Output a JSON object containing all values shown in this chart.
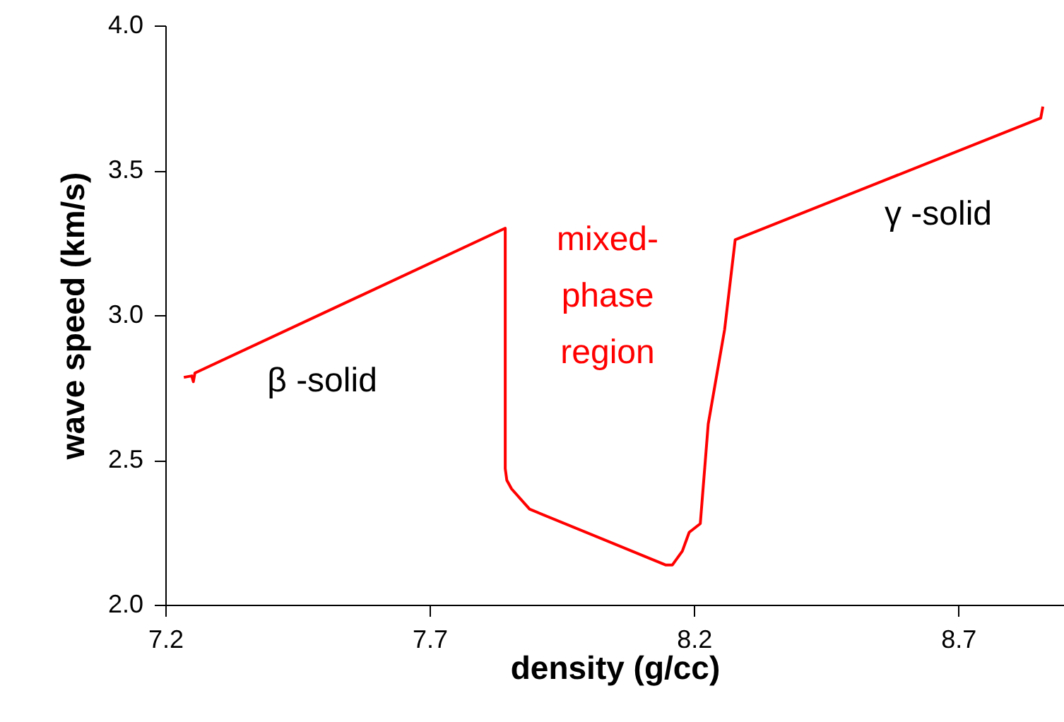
{
  "chart_data": {
    "type": "line",
    "xlabel": "density (g/cc)",
    "ylabel": "wave speed (km/s)",
    "series": [
      {
        "color": "#ff0000",
        "x": [
          7.235,
          7.25,
          7.253,
          7.256,
          7.843,
          7.843,
          7.846,
          7.855,
          7.889,
          8.147,
          8.159,
          8.178,
          8.191,
          8.212,
          8.227,
          8.258,
          8.278,
          8.856,
          8.86
        ],
        "values": [
          2.785,
          2.79,
          2.77,
          2.8,
          3.3,
          2.47,
          2.43,
          2.4,
          2.33,
          2.137,
          2.137,
          2.185,
          2.25,
          2.28,
          2.624,
          2.95,
          3.26,
          3.68,
          3.72
        ]
      }
    ],
    "xlim": [
      7.2,
      8.9
    ],
    "xticks": [
      7.2,
      7.7,
      8.2,
      8.7
    ],
    "ylim": [
      2.0,
      4.0
    ],
    "yticks": [
      {
        "value": 2.0,
        "label": "2.0"
      },
      {
        "value": 2.5,
        "label": "2.5"
      },
      {
        "value": 3.0,
        "label": "3.0"
      },
      {
        "value": 3.5,
        "label": "3.5"
      },
      {
        "value": 4.0,
        "label": "4.0"
      }
    ],
    "grid": false,
    "marker": "none",
    "line_style": "solid",
    "annotations": [
      "β -solid",
      "mixed-\nphase\nregion",
      "γ -solid"
    ]
  }
}
